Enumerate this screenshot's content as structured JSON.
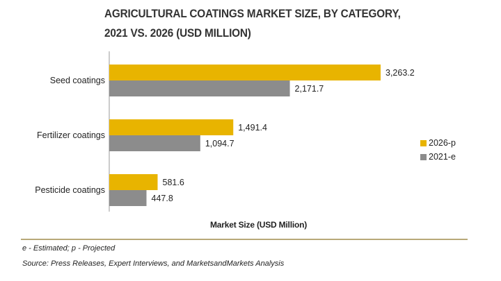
{
  "chart_data": {
    "type": "bar",
    "orientation": "horizontal",
    "title_line1": "AGRICULTURAL COATINGS MARKET SIZE, BY CATEGORY,",
    "title_line2": "2021 VS. 2026 (USD MILLION)",
    "xlabel": "Market Size (USD Million)",
    "ylabel": "",
    "categories": [
      "Seed coatings",
      "Fertilizer coatings",
      "Pesticide coatings"
    ],
    "series": [
      {
        "name": "2026-p",
        "color": "#e8b400",
        "values": [
          3263.2,
          1491.4,
          581.6
        ],
        "labels": [
          "3,263.2",
          "1,491.4",
          "581.6"
        ]
      },
      {
        "name": "2021-e",
        "color": "#8c8c8c",
        "values": [
          2171.7,
          1094.7,
          447.8
        ],
        "labels": [
          "2,171.7",
          "1,094.7",
          "447.8"
        ]
      }
    ],
    "xlim": [
      0,
      3600
    ],
    "grid": false,
    "legend_position": "right"
  },
  "footnotes": {
    "estimate_note": "e - Estimated; p - Projected",
    "source": "Source: Press Releases, Expert Interviews, and MarketsandMarkets Analysis"
  }
}
